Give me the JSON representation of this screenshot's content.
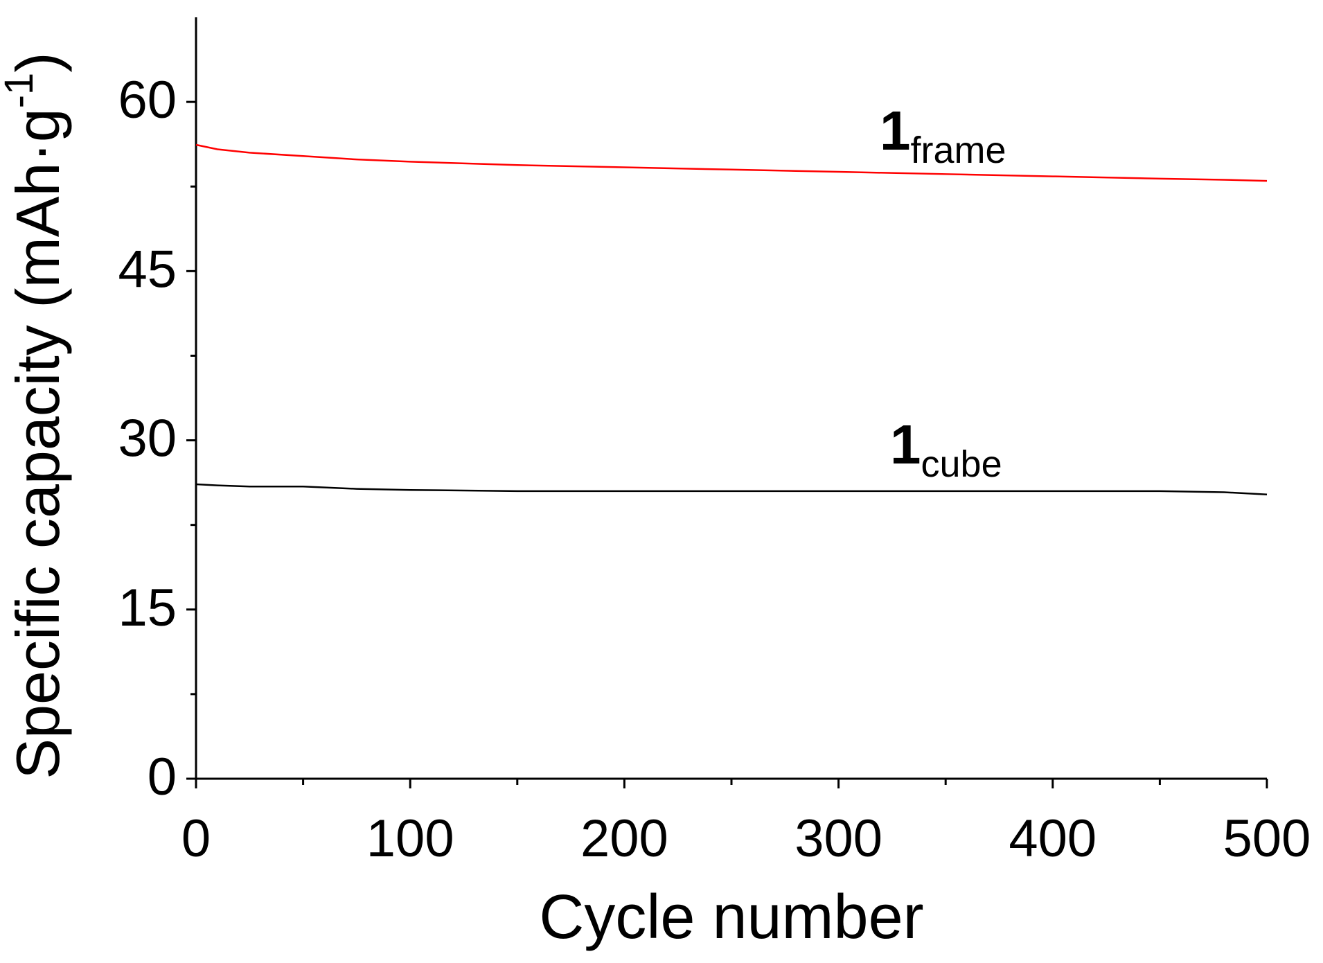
{
  "chart_data": {
    "type": "line",
    "xlabel": "Cycle number",
    "ylabel": [
      "Specific capacity (mAh·g",
      "-1",
      ")"
    ],
    "x": [
      0,
      10,
      25,
      50,
      75,
      100,
      150,
      200,
      250,
      300,
      350,
      400,
      450,
      480,
      500
    ],
    "series": [
      {
        "color": "#ff0000",
        "values": [
          56.2,
          55.8,
          55.5,
          55.2,
          54.9,
          54.7,
          54.4,
          54.2,
          54.0,
          53.8,
          53.6,
          53.4,
          53.2,
          53.1,
          53.0
        ]
      },
      {
        "color": "#000000",
        "values": [
          26.1,
          26.0,
          25.9,
          25.9,
          25.7,
          25.6,
          25.5,
          25.5,
          25.5,
          25.5,
          25.5,
          25.5,
          25.5,
          25.4,
          25.2
        ]
      }
    ],
    "annotations": [
      {
        "text": "1",
        "sub": "frame"
      },
      {
        "text": "1",
        "sub": "cube"
      }
    ],
    "xlim": [
      0,
      500
    ],
    "xticks": [
      0,
      100,
      200,
      300,
      400,
      500
    ],
    "ylim": [
      0,
      67.5
    ],
    "yticks": [
      0,
      15,
      30,
      45,
      60
    ],
    "grid": false
  }
}
